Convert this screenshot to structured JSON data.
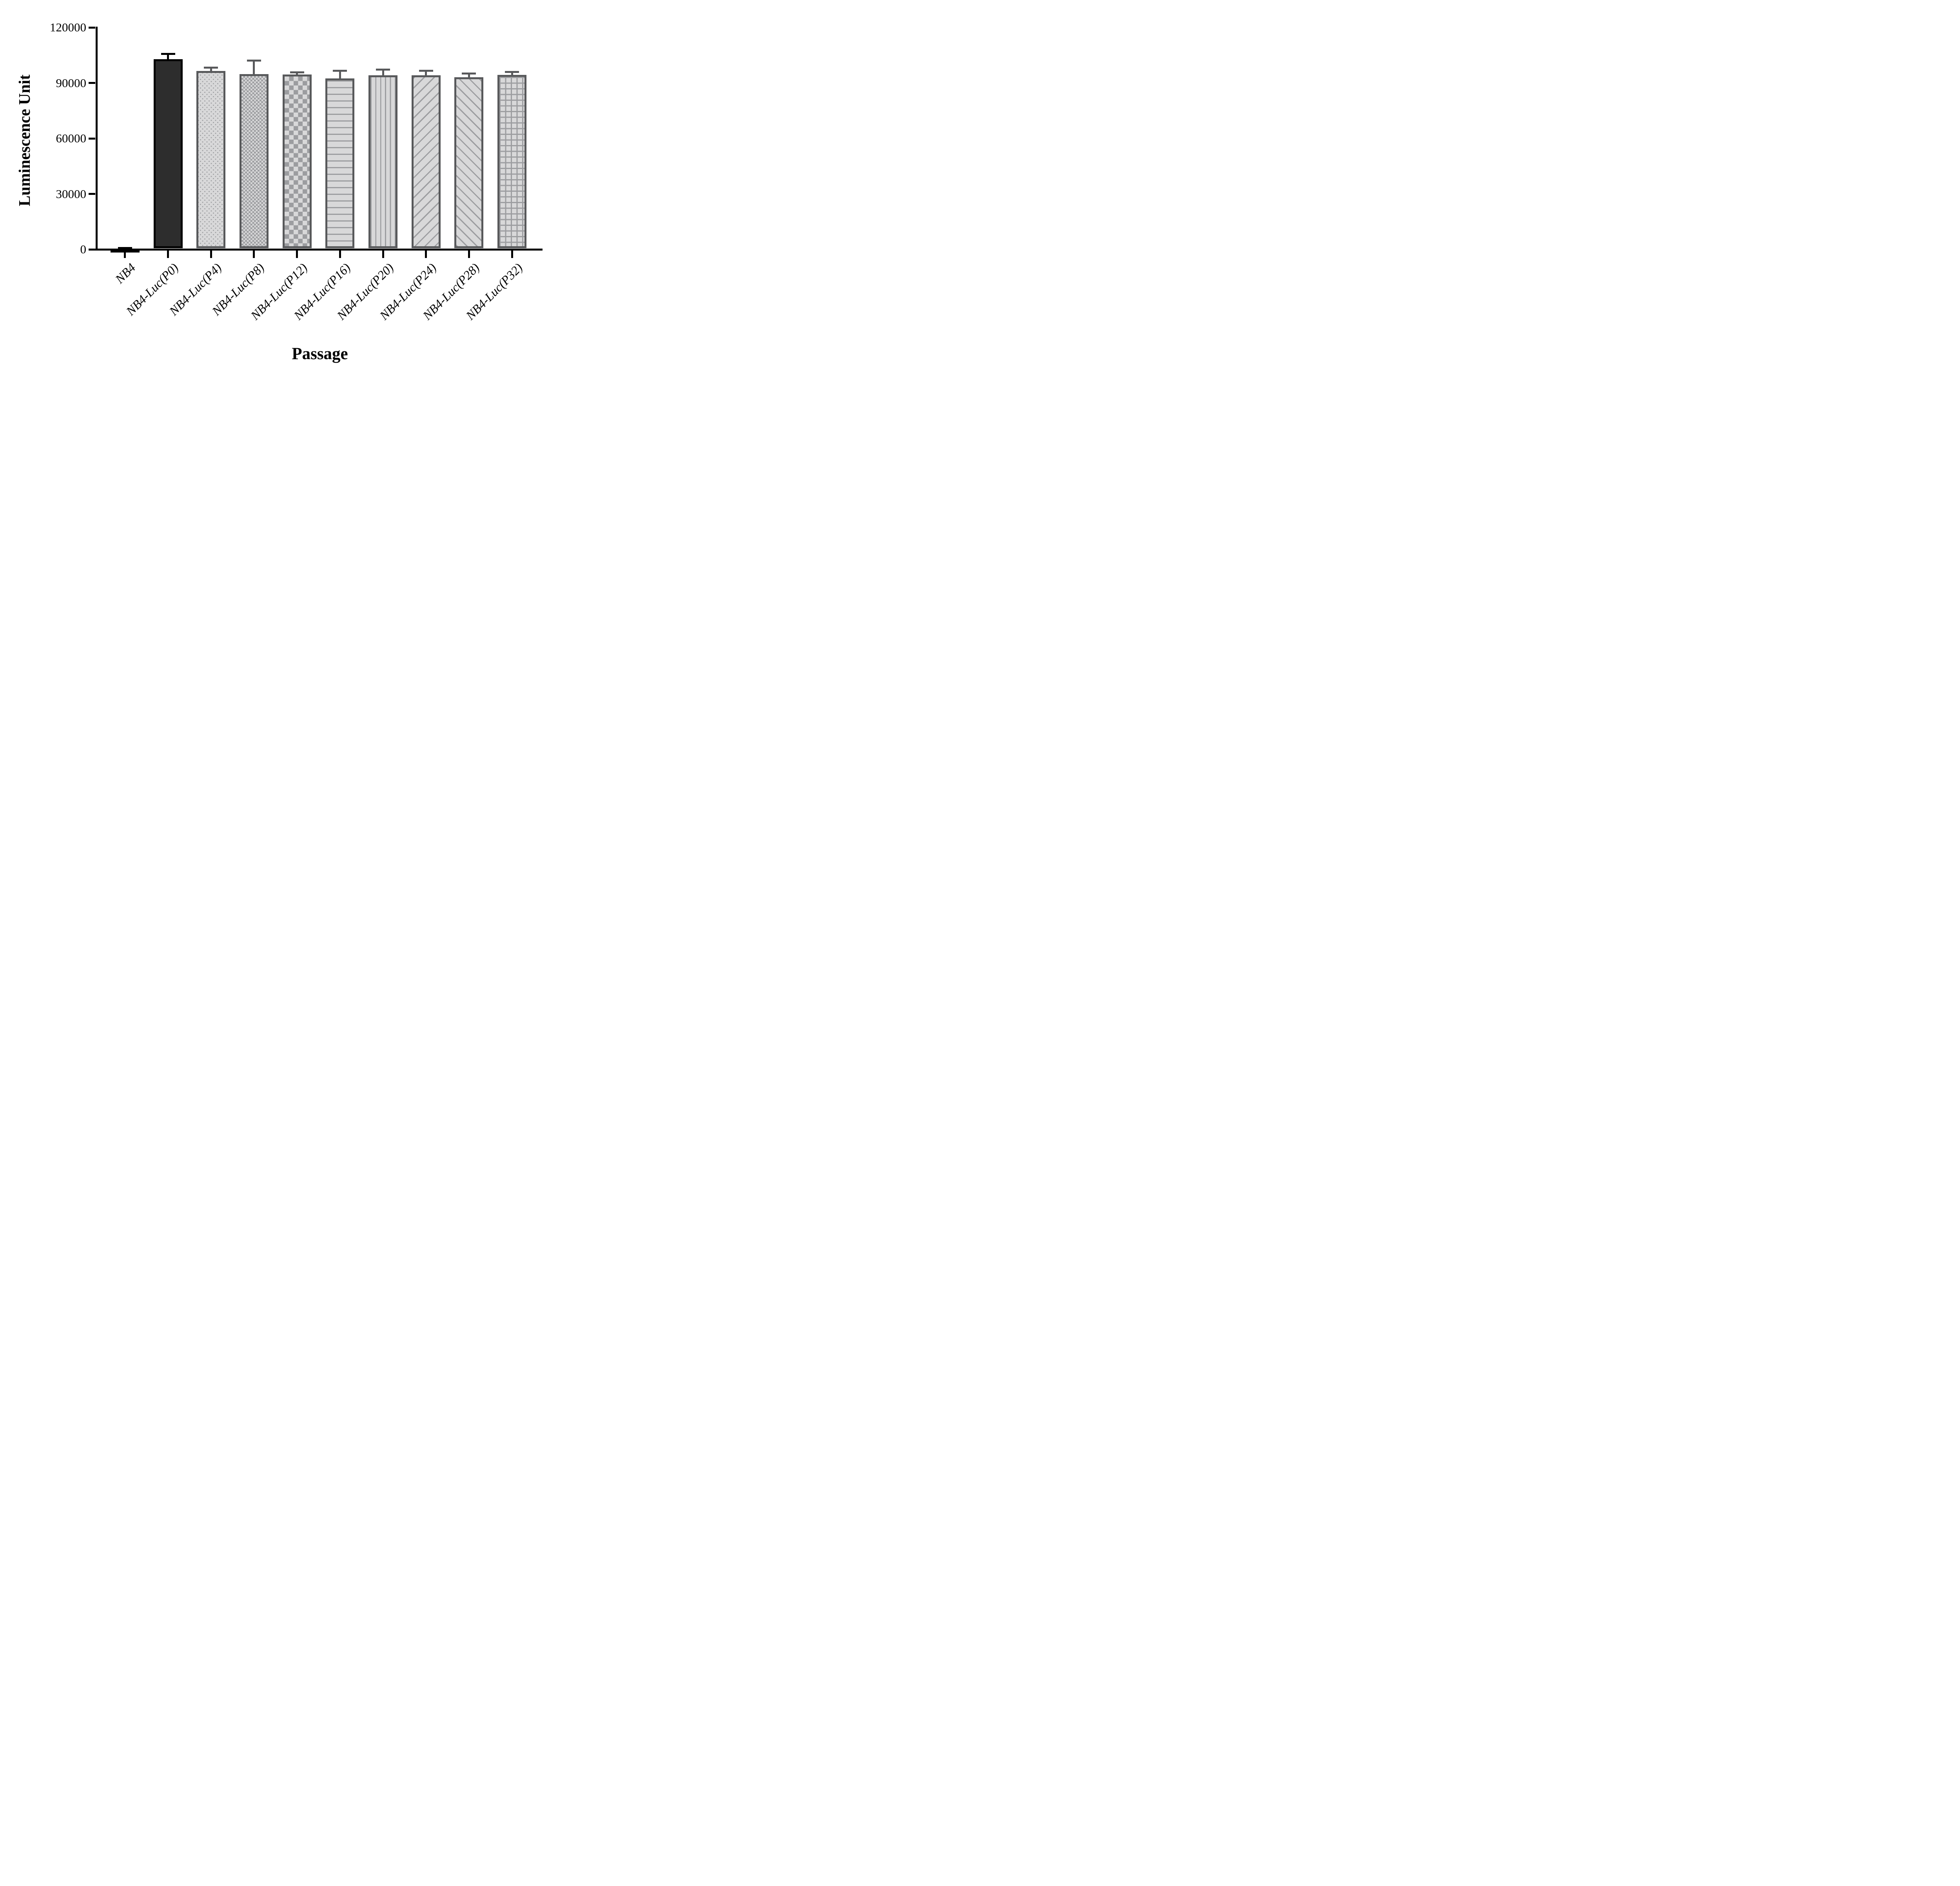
{
  "chart_data": {
    "type": "bar",
    "title": "",
    "ylabel": "Luminescence Unit",
    "xlabel": "Passage",
    "categories": [
      "NB4",
      "NB4-Luc(P0)",
      "NB4-Luc(P4)",
      "NB4-Luc(P8)",
      "NB4-Luc(P12)",
      "NB4-Luc(P16)",
      "NB4-Luc(P20)",
      "NB4-Luc(P24)",
      "NB4-Luc(P28)",
      "NB4-Luc(P32)"
    ],
    "values": [
      400,
      102800,
      96500,
      94800,
      94500,
      92400,
      94100,
      94100,
      93100,
      94300
    ],
    "sd_upper": [
      300,
      2900,
      1800,
      7300,
      1200,
      4200,
      3100,
      2500,
      1900,
      1600
    ],
    "patterns": [
      "solid-black",
      "solid-dark",
      "dots",
      "checker-fine",
      "checker-coarse",
      "hlines",
      "vlines",
      "diag-up",
      "diag-down",
      "grid"
    ],
    "error_colors": [
      "#000000",
      "#000000",
      "#58595b",
      "#58595b",
      "#58595b",
      "#58595b",
      "#58595b",
      "#58595b",
      "#58595b",
      "#58595b"
    ],
    "ylim": [
      0,
      120000
    ],
    "yticks": [
      "0",
      "30000",
      "60000",
      "90000",
      "120000"
    ],
    "ytick_values": [
      0,
      30000,
      60000,
      90000,
      120000
    ],
    "grid": false,
    "legend": "none",
    "colors": {
      "dark_fill": "#2d2d2d",
      "light_fill": "#d8d8d9",
      "pattern_gray": "#9c9da0",
      "border_gray": "#58595b",
      "axis_black": "#000000"
    }
  }
}
